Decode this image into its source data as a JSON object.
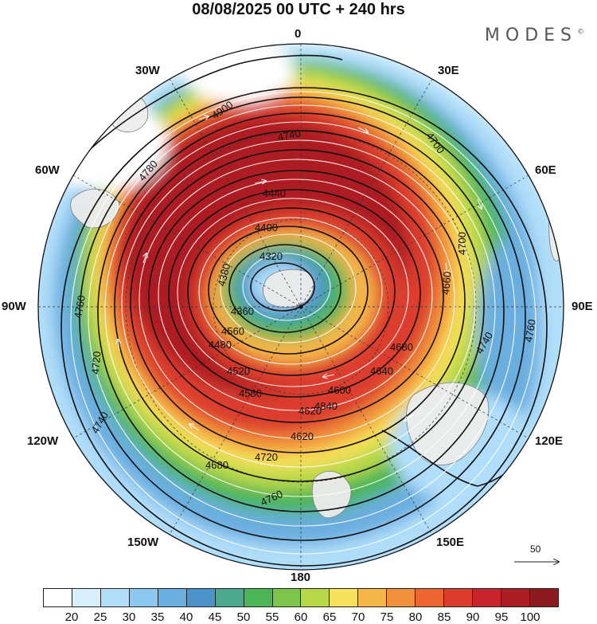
{
  "title": "08/08/2025  00 UTC  + 240 hrs",
  "brand": "MODES",
  "brand_mark": "©",
  "longitude_labels": {
    "lon_0": "0",
    "lon_30e": "30E",
    "lon_60e": "60E",
    "lon_90e": "90E",
    "lon_120e": "120E",
    "lon_150e": "150E",
    "lon_180": "180",
    "lon_150w": "150W",
    "lon_120w": "120W",
    "lon_90w": "90W",
    "lon_60w": "60W",
    "lon_30w": "30W"
  },
  "contour_labels": [
    "4900",
    "4740",
    "4780",
    "4720",
    "4760",
    "4740",
    "4620",
    "4600",
    "4580",
    "4560",
    "4520",
    "4480",
    "4440",
    "4400",
    "4360",
    "4320",
    "4380",
    "4840",
    "4640",
    "4680",
    "4660",
    "4700",
    "4760",
    "4740",
    "4720",
    "4760",
    "4700",
    "4680",
    "4620"
  ],
  "wind_scale_label": "50",
  "colorbar": {
    "colors": [
      "#ffffff",
      "#d8f0fb",
      "#b0defa",
      "#8cc8ee",
      "#6aaee0",
      "#4b93cb",
      "#4aa98c",
      "#4cb558",
      "#7cc54a",
      "#b7d84a",
      "#f7e05a",
      "#f5b649",
      "#f28f3b",
      "#ec6532",
      "#dc3d2d",
      "#c8242b",
      "#ad1d24",
      "#8c1a1f"
    ],
    "tick_labels": [
      "20",
      "25",
      "30",
      "35",
      "40",
      "45",
      "50",
      "55",
      "60",
      "65",
      "70",
      "75",
      "80",
      "85",
      "90",
      "95",
      "100"
    ]
  }
}
